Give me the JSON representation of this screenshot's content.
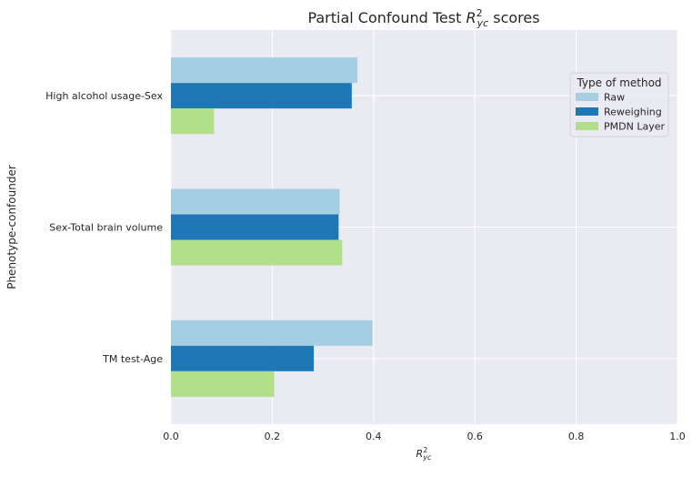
{
  "chart_data": {
    "type": "bar",
    "orientation": "horizontal",
    "title_prefix": "Partial Confound Test ",
    "title_math_base": "R",
    "title_math_sup": "2",
    "title_math_sub": "yc",
    "title_suffix": " scores",
    "xlabel_base": "R",
    "xlabel_sup": "2",
    "xlabel_sub": "yc",
    "ylabel": "Phenotype-confounder",
    "categories": [
      "High alcohol usage-Sex",
      "Sex-Total brain volume",
      "TM test-Age"
    ],
    "xlim": [
      0,
      1.0
    ],
    "xticks": [
      "0.0",
      "0.2",
      "0.4",
      "0.6",
      "0.8",
      "1.0"
    ],
    "grid": true,
    "legend_position": "upper right",
    "legend_title": "Type of method",
    "series": [
      {
        "name": "Raw",
        "color": "#a6cee3",
        "values": [
          0.368,
          0.333,
          0.398
        ]
      },
      {
        "name": "Reweighing",
        "color": "#1f78b4",
        "values": [
          0.357,
          0.331,
          0.282
        ]
      },
      {
        "name": "PMDN Layer",
        "color": "#b2df8a",
        "values": [
          0.085,
          0.338,
          0.204
        ]
      }
    ]
  }
}
